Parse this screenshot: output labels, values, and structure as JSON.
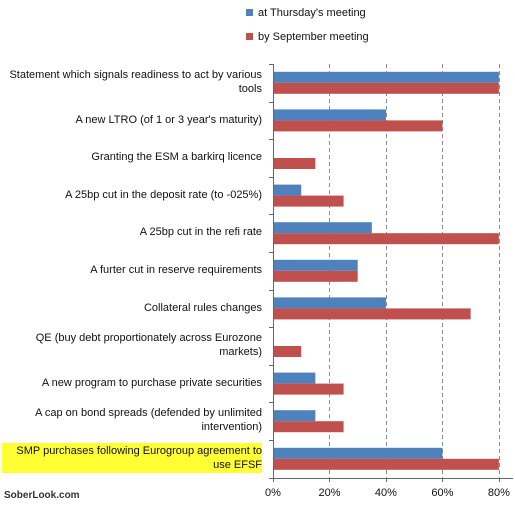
{
  "colors": {
    "series1": "#4f81bd",
    "series2": "#c0504d",
    "grid": "#8c8c8c",
    "axis": "#666666",
    "highlight": "#ffff33"
  },
  "watermark": "SoberLook.com",
  "chart_data": {
    "type": "bar",
    "orientation": "horizontal",
    "legend_placement": "top-right",
    "grid": true,
    "grid_style": "dashed-vertical",
    "xlim": [
      0,
      85
    ],
    "x_ticks": [
      0,
      20,
      40,
      60,
      80
    ],
    "x_tick_labels": [
      "0%",
      "20%",
      "40%",
      "60%",
      "80%"
    ],
    "categories": [
      "Statement which signals readiness to act by various tools",
      "A new LTRO (of 1 or 3 year's maturity)",
      "Granting the ESM a barkirq licence",
      "A 25bp cut in the deposit rate (to -025%)",
      "A 25bp cut in the refi rate",
      "A furter cut in reserve requirements",
      "Collateral rules changes",
      "QE (buy debt proportionately across Eurozone markets)",
      "A new program to purchase private securities",
      "A cap on bond spreads (defended by unlimited intervention)",
      "SMP purchases following Eurogroup agreement to use EFSF"
    ],
    "highlighted_category_index": 10,
    "series": [
      {
        "name": "at Thursday's meeting",
        "values": [
          80,
          40,
          0,
          10,
          35,
          30,
          40,
          0,
          15,
          15,
          60
        ]
      },
      {
        "name": "by September meeting",
        "values": [
          80,
          60,
          15,
          25,
          80,
          30,
          70,
          10,
          25,
          25,
          80
        ]
      }
    ]
  }
}
